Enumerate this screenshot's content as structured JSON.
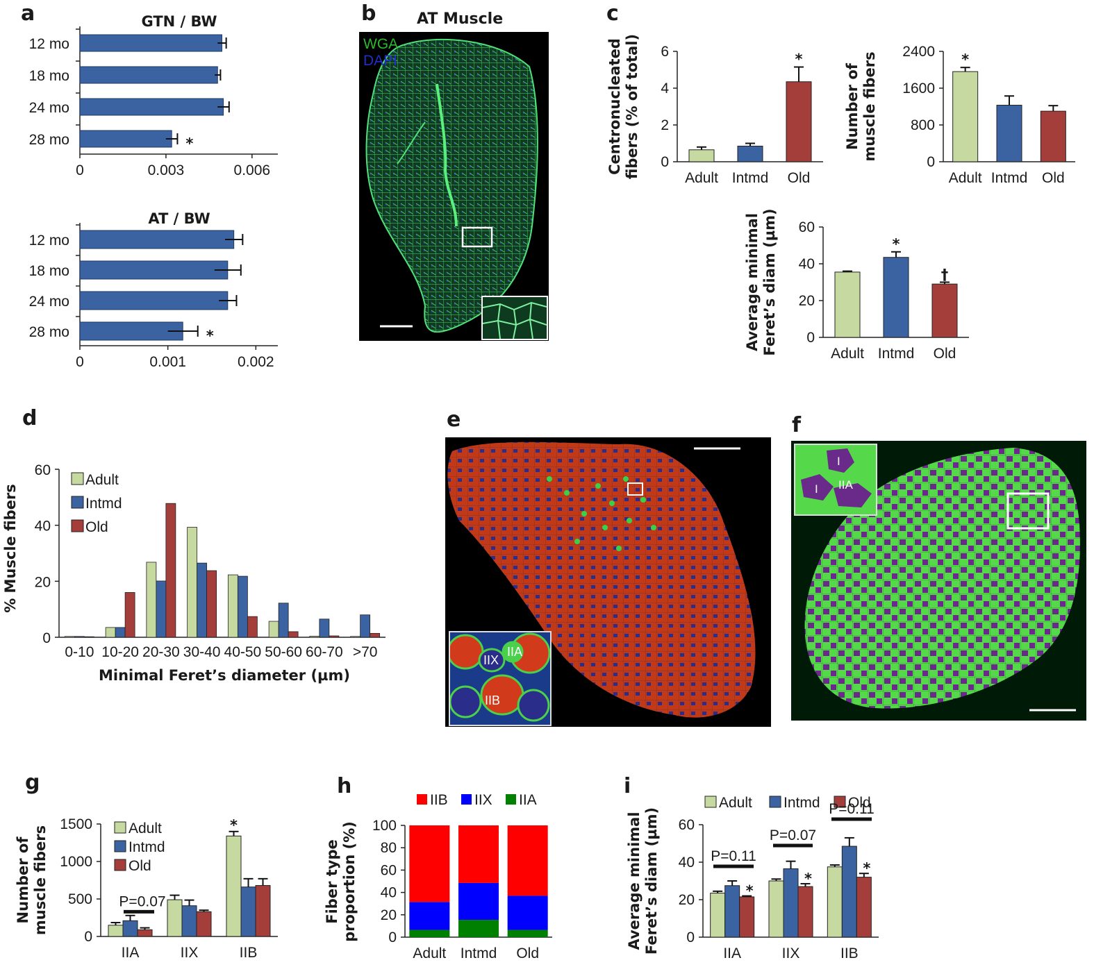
{
  "panels": {
    "a": "a",
    "b": "b",
    "c": "c",
    "d": "d",
    "e": "e",
    "f": "f",
    "g": "g",
    "h": "h",
    "i": "i"
  },
  "images": {
    "b": {
      "title": "AT Muscle",
      "legend": [
        "WGA",
        "DAPI"
      ],
      "legend_colors": [
        "#2db82d",
        "#1f2ecc"
      ]
    },
    "e": {
      "inset_labels": [
        "IIA",
        "IIX",
        "IIB"
      ]
    },
    "f": {
      "inset_labels": [
        "I",
        "I",
        "IIA"
      ]
    }
  },
  "colors": {
    "adult": "#c6d9a0",
    "intmd": "#3b62a1",
    "old": "#a43e3b",
    "bar_a": "#3b62a1",
    "IIB": "#ff0000",
    "IIX": "#0000ff",
    "IIA": "#008000"
  },
  "chart_data": [
    {
      "id": "a-top",
      "type": "bar",
      "orientation": "horizontal",
      "title": "GTN / BW",
      "categories": [
        "12 mo",
        "18 mo",
        "24 mo",
        "28 mo"
      ],
      "values": [
        0.00495,
        0.0048,
        0.005,
        0.0032
      ],
      "errors": [
        0.00015,
        0.0001,
        0.0002,
        0.0002
      ],
      "significance": [
        "",
        "",
        "",
        "*"
      ],
      "xlim": [
        0,
        0.0069
      ],
      "xticks": [
        0,
        0.003,
        0.006
      ],
      "xtick_labels": [
        "0",
        "0.003",
        "0.006"
      ]
    },
    {
      "id": "a-bottom",
      "type": "bar",
      "orientation": "horizontal",
      "title": "AT / BW",
      "categories": [
        "12 mo",
        "18 mo",
        "24 mo",
        "28 mo"
      ],
      "values": [
        0.00175,
        0.00168,
        0.00168,
        0.00117
      ],
      "errors": [
        0.0001,
        0.00015,
        0.0001,
        0.00017
      ],
      "significance": [
        "",
        "",
        "",
        "*"
      ],
      "xlim": [
        0,
        0.00225
      ],
      "xticks": [
        0,
        0.001,
        0.002
      ],
      "xtick_labels": [
        "0",
        "0.001",
        "0.002"
      ]
    },
    {
      "id": "c-centro",
      "type": "bar",
      "ylabel": [
        "Centronucleated",
        "fibers (% of total)"
      ],
      "categories": [
        "Adult",
        "Intmd",
        "Old"
      ],
      "values": [
        0.65,
        0.85,
        4.35
      ],
      "errors": [
        0.15,
        0.15,
        0.8
      ],
      "significance": [
        "",
        "",
        "*"
      ],
      "ylim": [
        0,
        6
      ],
      "yticks": [
        0,
        2,
        4,
        6
      ]
    },
    {
      "id": "c-number",
      "type": "bar",
      "ylabel": [
        "Number of",
        "muscle fibers"
      ],
      "categories": [
        "Adult",
        "Intmd",
        "Old"
      ],
      "values": [
        1960,
        1230,
        1100
      ],
      "errors": [
        90,
        200,
        120
      ],
      "significance": [
        "*",
        "",
        ""
      ],
      "ylim": [
        0,
        2400
      ],
      "yticks": [
        0,
        800,
        1600,
        2400
      ]
    },
    {
      "id": "c-feret",
      "type": "bar",
      "ylabel": [
        "Average minimal",
        "Feret’s diam (µm)"
      ],
      "categories": [
        "Adult",
        "Intmd",
        "Old"
      ],
      "values": [
        35.5,
        43.5,
        29
      ],
      "errors": [
        0.5,
        3,
        1
      ],
      "significance": [
        "",
        "*",
        "†"
      ],
      "ylim": [
        0,
        60
      ],
      "yticks": [
        0,
        20,
        40,
        60
      ]
    },
    {
      "id": "d",
      "type": "bar",
      "xlabel": "Minimal Feret’s diameter (µm)",
      "ylabel": "% Muscle fibers",
      "categories": [
        "0-10",
        "10-20",
        "20-30",
        "30-40",
        "40-50",
        "50-60",
        "60-70",
        ">70"
      ],
      "series": [
        {
          "name": "Adult",
          "values": [
            0.3,
            3.5,
            26.8,
            39.3,
            22.3,
            5.7,
            0.4,
            0.3
          ]
        },
        {
          "name": "Intmd",
          "values": [
            0.3,
            3.5,
            20.1,
            26.5,
            21.8,
            12.2,
            6.5,
            8
          ]
        },
        {
          "name": "Old",
          "values": [
            0.2,
            16,
            47.8,
            23.8,
            7.4,
            2,
            0.5,
            1.4
          ]
        }
      ],
      "ylim": [
        0,
        60
      ],
      "yticks": [
        0,
        20,
        40,
        60
      ],
      "legend": "top-left"
    },
    {
      "id": "g",
      "type": "bar",
      "ylabel": [
        "Number of",
        "muscle fibers"
      ],
      "categories": [
        "IIA",
        "IIX",
        "IIB"
      ],
      "series": [
        {
          "name": "Adult",
          "values": [
            150,
            490,
            1340
          ],
          "errors": [
            35,
            60,
            60
          ]
        },
        {
          "name": "Intmd",
          "values": [
            210,
            410,
            660
          ],
          "errors": [
            70,
            75,
            110
          ]
        },
        {
          "name": "Old",
          "values": [
            90,
            330,
            680
          ],
          "errors": [
            25,
            20,
            90
          ]
        }
      ],
      "significance": [
        "",
        "",
        "*"
      ],
      "annotations": [
        {
          "text": "P=0.07",
          "category": "IIA"
        }
      ],
      "ylim": [
        0,
        1500
      ],
      "yticks": [
        0,
        500,
        1000,
        1500
      ],
      "legend": "top-left"
    },
    {
      "id": "h",
      "type": "bar",
      "stacked": true,
      "ylabel": [
        "Fiber type",
        "proportion (%)"
      ],
      "categories": [
        "Adult",
        "Intmd",
        "Old"
      ],
      "series": [
        {
          "name": "IIA",
          "values": [
            6.5,
            15.5,
            6.5
          ]
        },
        {
          "name": "IIX",
          "values": [
            25,
            33,
            30.5
          ]
        },
        {
          "name": "IIB",
          "values": [
            68.5,
            51.5,
            63
          ]
        }
      ],
      "ylim": [
        0,
        100
      ],
      "yticks": [
        0,
        20,
        40,
        60,
        80,
        100
      ],
      "legend": "top"
    },
    {
      "id": "i",
      "type": "bar",
      "ylabel": [
        "Average minimal",
        "Feret’s diam (µm)"
      ],
      "categories": [
        "IIA",
        "IIX",
        "IIB"
      ],
      "series": [
        {
          "name": "Adult",
          "values": [
            23.5,
            30,
            37.5
          ],
          "errors": [
            1,
            1,
            1
          ]
        },
        {
          "name": "Intmd",
          "values": [
            27.5,
            36.5,
            48.5
          ],
          "errors": [
            2.5,
            4,
            4.5
          ]
        },
        {
          "name": "Old",
          "values": [
            21.5,
            27,
            32
          ],
          "errors": [
            0.5,
            1.5,
            2
          ]
        }
      ],
      "significance": [
        "*",
        "*",
        "*"
      ],
      "annotations": [
        {
          "text": "P=0.11",
          "category": "IIA"
        },
        {
          "text": "P=0.07",
          "category": "IIX"
        },
        {
          "text": "P=0.11",
          "category": "IIB"
        }
      ],
      "ylim": [
        0,
        60
      ],
      "yticks": [
        0,
        20,
        40,
        60
      ],
      "legend": "top"
    }
  ]
}
